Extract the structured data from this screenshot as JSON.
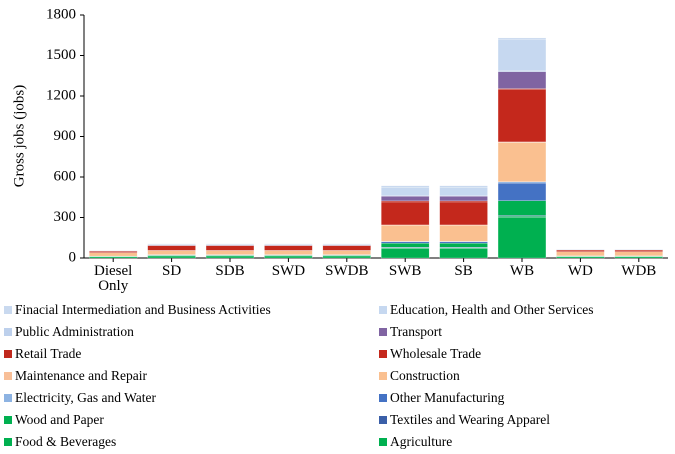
{
  "chart_data": {
    "type": "stacked_bar",
    "y_label": "Gross jobs (jobs)",
    "categories": [
      "Diesel Only",
      "SD",
      "SDB",
      "SWD",
      "SWDB",
      "SWB",
      "SB",
      "WB",
      "WD",
      "WDB"
    ],
    "ylim": [
      0,
      1800
    ],
    "yticks": [
      0,
      300,
      600,
      900,
      1200,
      1500,
      1800
    ],
    "series": [
      {
        "name": "Finacial Intermediation and Business Activities",
        "color": "#c9d9ef",
        "values": [
          0,
          1,
          1,
          1,
          1,
          12,
          12,
          10,
          1,
          1
        ]
      },
      {
        "name": "Education, Health and Other Services",
        "color": "#c6d8f0",
        "values": [
          3,
          6,
          6,
          6,
          6,
          60,
          60,
          230,
          3,
          3
        ]
      },
      {
        "name": "Public Administration",
        "color": "#bdd0ec",
        "values": [
          0,
          1,
          1,
          1,
          1,
          5,
          5,
          10,
          0,
          0
        ]
      },
      {
        "name": "Transport",
        "color": "#8064a2",
        "values": [
          1,
          4,
          4,
          4,
          4,
          35,
          35,
          125,
          1,
          1
        ]
      },
      {
        "name": "Retail Trade",
        "color": "#c0281c",
        "values": [
          1,
          2,
          2,
          2,
          2,
          8,
          8,
          5,
          1,
          1
        ]
      },
      {
        "name": "Wholesale Trade",
        "color": "#c4281c",
        "values": [
          10,
          35,
          35,
          35,
          35,
          170,
          170,
          390,
          12,
          12
        ]
      },
      {
        "name": "Maintenance and Repair",
        "color": "#f8bf98",
        "values": [
          1,
          1,
          1,
          1,
          1,
          2,
          2,
          5,
          1,
          1
        ]
      },
      {
        "name": "Construction",
        "color": "#fac090",
        "values": [
          25,
          30,
          30,
          30,
          30,
          120,
          120,
          290,
          30,
          30
        ]
      },
      {
        "name": "Electricity, Gas and Water",
        "color": "#8db3e2",
        "values": [
          0,
          1,
          1,
          1,
          1,
          3,
          3,
          10,
          0,
          0
        ]
      },
      {
        "name": "Other Manufacturing",
        "color": "#4472c4",
        "values": [
          1,
          2,
          2,
          2,
          2,
          10,
          10,
          130,
          1,
          1
        ]
      },
      {
        "name": "Wood and Paper",
        "color": "#00b050",
        "values": [
          2,
          4,
          4,
          4,
          4,
          30,
          30,
          110,
          3,
          3
        ]
      },
      {
        "name": "Textiles and Wearing Apparel",
        "color": "#3a5fa8",
        "values": [
          0,
          1,
          1,
          1,
          1,
          5,
          5,
          5,
          1,
          1
        ]
      },
      {
        "name": "Food & Beverages",
        "color": "#00b050",
        "values": [
          1,
          2,
          2,
          2,
          2,
          5,
          5,
          10,
          1,
          1
        ]
      },
      {
        "name": "Agriculture",
        "color": "#00b050",
        "values": [
          10,
          15,
          15,
          15,
          15,
          70,
          70,
          300,
          10,
          10
        ]
      }
    ]
  }
}
